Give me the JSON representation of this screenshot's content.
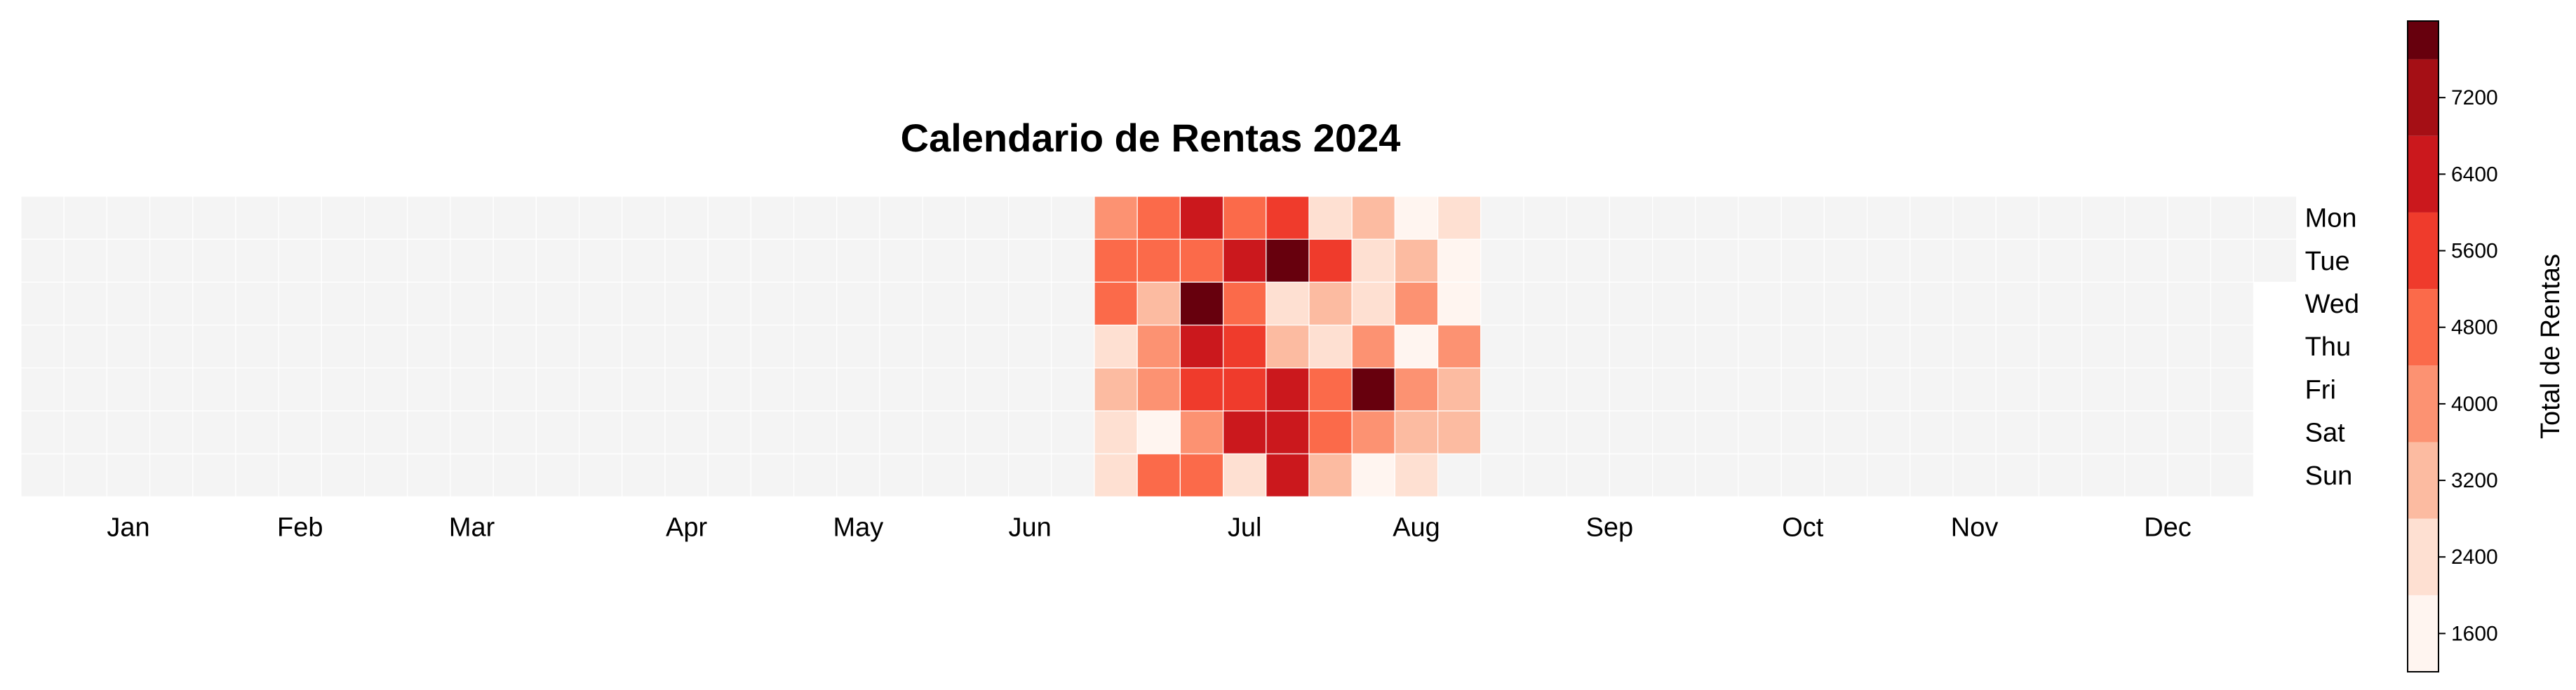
{
  "chart_data": {
    "type": "heatmap",
    "title": "Calendario de Rentas 2024",
    "year": 2024,
    "rows": [
      "Mon",
      "Tue",
      "Wed",
      "Thu",
      "Fri",
      "Sat",
      "Sun"
    ],
    "month_labels": [
      "Jan",
      "Feb",
      "Mar",
      "Apr",
      "May",
      "Jun",
      "Jul",
      "Aug",
      "Sep",
      "Oct",
      "Nov",
      "Dec"
    ],
    "data_weeks_start": "2024-06-24",
    "values": [
      [
        4300,
        5000,
        6000,
        5000,
        5800,
        2300,
        3200,
        1600,
        2500
      ],
      [
        5000,
        5000,
        5000,
        6700,
        7700,
        5800,
        2500,
        3200,
        1600
      ],
      [
        5000,
        3200,
        7600,
        5000,
        2300,
        3200,
        2500,
        4300,
        1600
      ],
      [
        2500,
        3900,
        6300,
        5800,
        3200,
        2500,
        3900,
        1500,
        4300
      ],
      [
        3200,
        3900,
        5800,
        5800,
        6500,
        4600,
        7800,
        4300,
        3200
      ],
      [
        2500,
        1500,
        4300,
        6500,
        6500,
        4600,
        3900,
        3200,
        3200
      ],
      [
        2500,
        5000,
        5000,
        2300,
        6600,
        3200,
        1600,
        2500,
        null
      ]
    ],
    "colorbar": {
      "label": "Total de Rentas",
      "min": 1200,
      "max": 8000,
      "ticks": [
        1600,
        2400,
        3200,
        4000,
        4800,
        5600,
        6400,
        7200
      ],
      "levels": [
        1200,
        2000,
        2800,
        3600,
        4400,
        5200,
        6000,
        6800,
        7600,
        8000
      ],
      "colors": [
        "#fff5f0",
        "#fee0d2",
        "#fcbba1",
        "#fc9272",
        "#fb6a4a",
        "#ef3b2c",
        "#cb181d",
        "#a50f15",
        "#67000d"
      ]
    },
    "empty_color": "#f4f4f4"
  }
}
